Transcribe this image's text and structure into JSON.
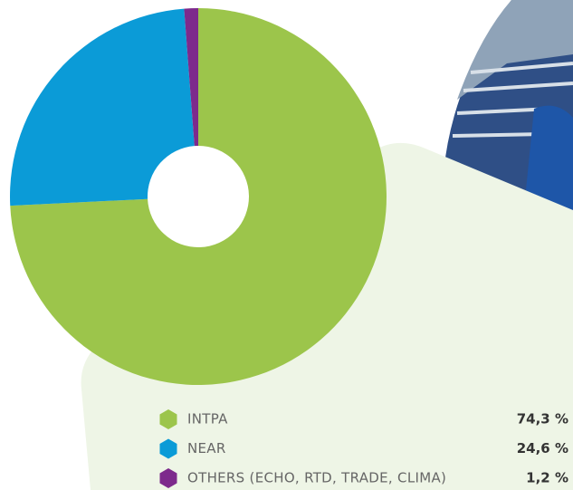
{
  "chart_data": {
    "type": "pie",
    "categories": [
      "INTPA",
      "NEAR",
      "OTHERS (ECHO, RTD, TRADE, CLIMA)"
    ],
    "values": [
      74.3,
      24.6,
      1.2
    ],
    "value_labels": [
      "74,3 %",
      "24,6 %",
      "1,2 %"
    ],
    "colors": [
      "#9cc54b",
      "#0b9bd7",
      "#7d2a8c"
    ],
    "donut": true
  }
}
